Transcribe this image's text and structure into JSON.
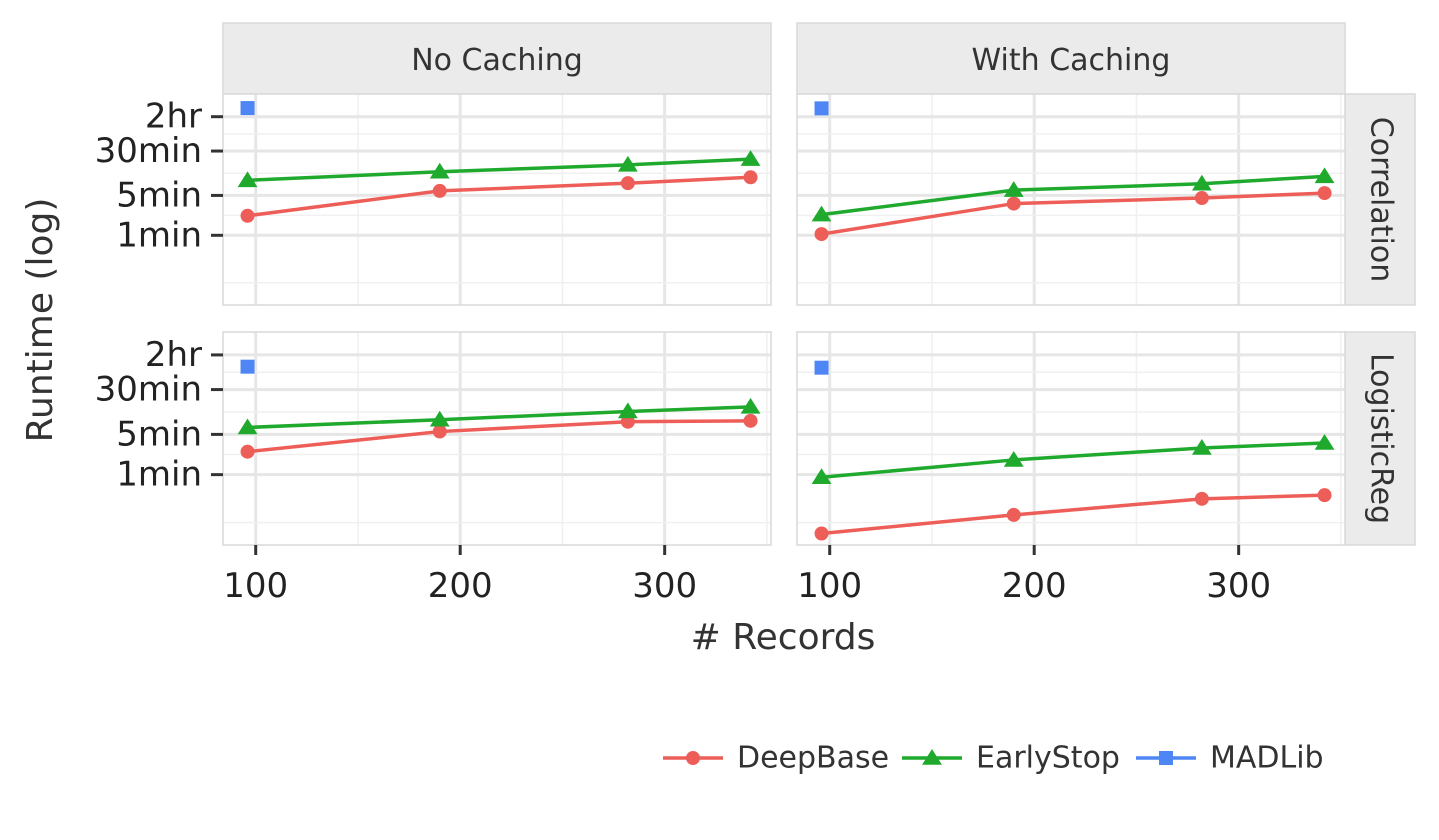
{
  "chart_data": {
    "type": "line",
    "xlabel": "# Records",
    "ylabel": "Runtime (log)",
    "y_scale": "log",
    "y_unit": "minutes",
    "x_ticks": [
      100,
      200,
      300
    ],
    "x_range": [
      84,
      352
    ],
    "y_range_minutes": [
      0.06,
      300
    ],
    "y_ticks": [
      {
        "label": "2hr",
        "value": 120
      },
      {
        "label": "30min",
        "value": 30
      },
      {
        "label": "5min",
        "value": 5
      },
      {
        "label": "1min",
        "value": 1
      }
    ],
    "col_labels": [
      "No Caching",
      "With Caching"
    ],
    "row_labels": [
      "Correlation",
      "LogisticReg"
    ],
    "legend": [
      {
        "name": "DeepBase",
        "color": "#EE5E58",
        "marker": "circle"
      },
      {
        "name": "EarlyStop",
        "color": "#1FAA2E",
        "marker": "triangle"
      },
      {
        "name": "MADLib",
        "color": "#4E86F5",
        "marker": "square"
      }
    ],
    "legend_position": "bottom",
    "panels": [
      {
        "row": "Correlation",
        "col": "No Caching",
        "series": [
          {
            "name": "DeepBase",
            "x": [
              96,
              190,
              282,
              342
            ],
            "y": [
              2.2,
              6,
              8.2,
              10.4
            ]
          },
          {
            "name": "EarlyStop",
            "x": [
              96,
              190,
              282,
              342
            ],
            "y": [
              9.2,
              13,
              17.2,
              21.7
            ]
          },
          {
            "name": "MADLib",
            "x": [
              96
            ],
            "y": [
              170
            ]
          }
        ]
      },
      {
        "row": "Correlation",
        "col": "With Caching",
        "series": [
          {
            "name": "DeepBase",
            "x": [
              96,
              190,
              282,
              342
            ],
            "y": [
              1.05,
              3.6,
              4.5,
              5.5
            ]
          },
          {
            "name": "EarlyStop",
            "x": [
              96,
              190,
              282,
              342
            ],
            "y": [
              2.3,
              6.2,
              8,
              10.8
            ]
          },
          {
            "name": "MADLib",
            "x": [
              96
            ],
            "y": [
              168
            ]
          }
        ]
      },
      {
        "row": "LogisticReg",
        "col": "No Caching",
        "series": [
          {
            "name": "DeepBase",
            "x": [
              96,
              190,
              282,
              342
            ],
            "y": [
              2.5,
              5.6,
              8.3,
              8.6
            ]
          },
          {
            "name": "EarlyStop",
            "x": [
              96,
              190,
              282,
              342
            ],
            "y": [
              6.6,
              9,
              12.5,
              15
            ]
          },
          {
            "name": "MADLib",
            "x": [
              96
            ],
            "y": [
              75
            ]
          }
        ]
      },
      {
        "row": "LogisticReg",
        "col": "With Caching",
        "series": [
          {
            "name": "DeepBase",
            "x": [
              96,
              190,
              282,
              342
            ],
            "y": [
              0.095,
              0.2,
              0.38,
              0.44
            ]
          },
          {
            "name": "EarlyStop",
            "x": [
              96,
              190,
              282,
              342
            ],
            "y": [
              0.9,
              1.8,
              2.9,
              3.55
            ]
          },
          {
            "name": "MADLib",
            "x": [
              96
            ],
            "y": [
              72
            ]
          }
        ]
      }
    ]
  }
}
